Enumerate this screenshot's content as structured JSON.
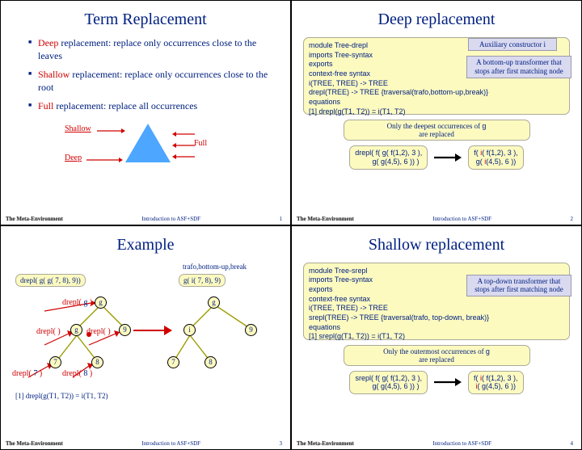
{
  "footer": {
    "logo": "The Meta-Environment",
    "text": "Introduction to ASF+SDF"
  },
  "slide1": {
    "title": "Term Replacement",
    "bullets": [
      {
        "kw": "Deep",
        "rest": " replacement: replace only occurrences close to the leaves"
      },
      {
        "kw": "Shallow",
        "rest": " replacement: replace only occurrences close to the root"
      },
      {
        "kw": "Full",
        "rest": " replacement: replace all occurrences"
      }
    ],
    "labels": {
      "shallow": "Shallow",
      "deep": "Deep",
      "full": "Full"
    },
    "page": "1",
    "colors": {
      "triangle": "#4da6ff",
      "arrow_red": "#d00000"
    }
  },
  "slide2": {
    "title": "Deep replacement",
    "code": [
      "module Tree-drepl",
      "imports Tree-syntax",
      "exports",
      "context-free syntax",
      "  i(TREE, TREE)  -> TREE",
      "  drepl(TREE)    -> TREE {traversal(trafo,bottom-up,break)}",
      "equations",
      "[1] drepl(g(T1, T2)) = i(T1, T2)"
    ],
    "aux": "Auxiliary constructor i",
    "info": "A bottom-up transformer that stops after first matching node",
    "note_pre": "Only the deepest occurrences of ",
    "note_g": "g",
    "note_post": " are replaced",
    "left": "drepl( f( g( f(1,2), 3 ),\n       g( g(4,5), 6 )) )",
    "right_l1": "f( i( f(1,2), 3 ),",
    "right_l2": "   g( i(4,5), 6 ))",
    "page": "2"
  },
  "slide3": {
    "title": "Example",
    "trafo": "trafo,bottom-up,break",
    "topbox": "drepl( g( g( 7, 8), 9))",
    "resbox": "g( i( 7, 8), 9)",
    "eq": "[1] drepl(g(T1, T2)) = i(T1, T2)",
    "dlabels": [
      "drepl(",
      "drepl(",
      "drepl(",
      "drepl(",
      "drepl("
    ],
    "nodes_left": [
      "g",
      "g",
      "9",
      "7",
      "8"
    ],
    "nodes_right": [
      "g",
      "i",
      "9",
      "7",
      "8"
    ],
    "page": "3",
    "colors": {
      "edge": "#9c9c00",
      "red": "#d00000"
    }
  },
  "slide4": {
    "title": "Shallow replacement",
    "code": [
      "module Tree-srepl",
      "imports Tree-syntax",
      "exports",
      "context-free syntax",
      "  i(TREE, TREE)  -> TREE",
      "  srepl(TREE)    -> TREE {traversal(trafo, top-down, break)}",
      "equations",
      "[1] srepl(g(T1, T2)) = i(T1, T2)"
    ],
    "info": "A top-down transformer that stops after first matching node",
    "note_pre": "Only the outermost occurrences of ",
    "note_g": "g",
    "note_post": " are replaced",
    "left": "srepl( f( g( f(1,2), 3 ),\n       g( g(4,5), 6 )) )",
    "right_l1": "f( i( f(1,2), 3 ),",
    "right_l2": "   i( g(4,5), 6 ))",
    "page": "4"
  }
}
